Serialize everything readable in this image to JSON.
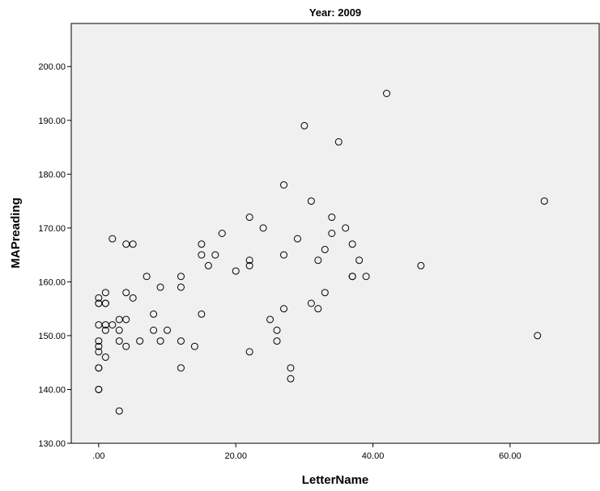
{
  "chart_data": {
    "type": "scatter",
    "title": "Year: 2009",
    "xlabel": "LetterName",
    "ylabel": "MAPreading",
    "xlim": [
      -4,
      73
    ],
    "ylim": [
      130,
      208
    ],
    "xticks": [
      0,
      20,
      40,
      60
    ],
    "xtick_labels": [
      ".00",
      "20.00",
      "40.00",
      "60.00"
    ],
    "yticks": [
      130,
      140,
      150,
      160,
      170,
      180,
      190,
      200
    ],
    "ytick_labels": [
      "130.00",
      "140.00",
      "150.00",
      "160.00",
      "170.00",
      "180.00",
      "190.00",
      "200.00"
    ],
    "grid": false,
    "colors": {
      "plot_background": "#f0f0f0",
      "marker": "#000000"
    },
    "points": [
      [
        0,
        157
      ],
      [
        0,
        156
      ],
      [
        0,
        156
      ],
      [
        0,
        152
      ],
      [
        0,
        149
      ],
      [
        0,
        148
      ],
      [
        0,
        147
      ],
      [
        0,
        144
      ],
      [
        0,
        144
      ],
      [
        0,
        140
      ],
      [
        0,
        140
      ],
      [
        1,
        158
      ],
      [
        1,
        156
      ],
      [
        1,
        156
      ],
      [
        1,
        152
      ],
      [
        1,
        151
      ],
      [
        1,
        146
      ],
      [
        2,
        168
      ],
      [
        2,
        152
      ],
      [
        3,
        153
      ],
      [
        3,
        151
      ],
      [
        3,
        149
      ],
      [
        3,
        136
      ],
      [
        4,
        167
      ],
      [
        4,
        158
      ],
      [
        4,
        153
      ],
      [
        4,
        148
      ],
      [
        5,
        167
      ],
      [
        5,
        157
      ],
      [
        6,
        149
      ],
      [
        7,
        161
      ],
      [
        8,
        154
      ],
      [
        8,
        151
      ],
      [
        9,
        159
      ],
      [
        9,
        149
      ],
      [
        10,
        151
      ],
      [
        12,
        161
      ],
      [
        12,
        159
      ],
      [
        12,
        149
      ],
      [
        12,
        144
      ],
      [
        14,
        148
      ],
      [
        15,
        167
      ],
      [
        15,
        165
      ],
      [
        15,
        154
      ],
      [
        16,
        163
      ],
      [
        17,
        165
      ],
      [
        18,
        169
      ],
      [
        20,
        162
      ],
      [
        22,
        172
      ],
      [
        22,
        164
      ],
      [
        22,
        163
      ],
      [
        22,
        147
      ],
      [
        24,
        170
      ],
      [
        25,
        153
      ],
      [
        26,
        151
      ],
      [
        26,
        149
      ],
      [
        27,
        178
      ],
      [
        27,
        165
      ],
      [
        27,
        155
      ],
      [
        28,
        144
      ],
      [
        28,
        142
      ],
      [
        29,
        168
      ],
      [
        30,
        189
      ],
      [
        31,
        175
      ],
      [
        31,
        156
      ],
      [
        32,
        164
      ],
      [
        32,
        155
      ],
      [
        33,
        166
      ],
      [
        33,
        158
      ],
      [
        34,
        172
      ],
      [
        34,
        169
      ],
      [
        35,
        186
      ],
      [
        36,
        170
      ],
      [
        37,
        167
      ],
      [
        37,
        161
      ],
      [
        37,
        161
      ],
      [
        38,
        164
      ],
      [
        39,
        161
      ],
      [
        42,
        195
      ],
      [
        47,
        163
      ],
      [
        64,
        150
      ],
      [
        65,
        175
      ]
    ]
  }
}
